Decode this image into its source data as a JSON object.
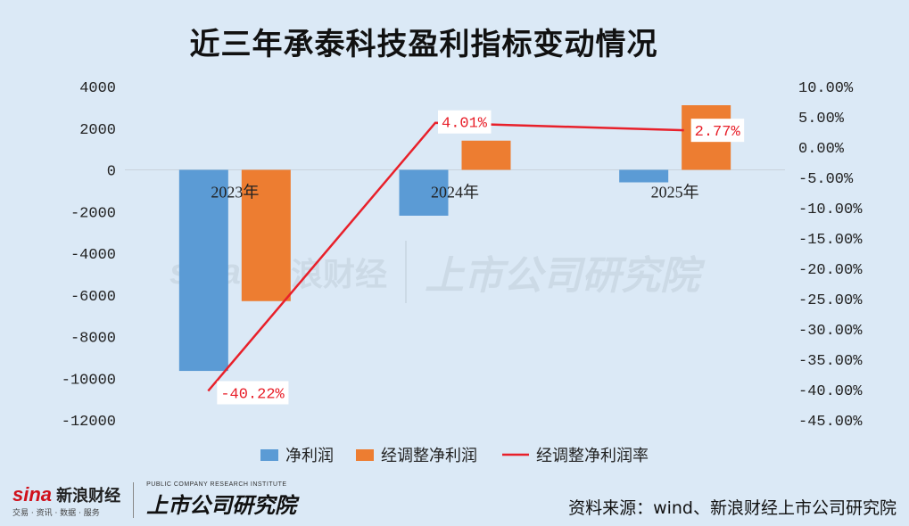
{
  "title": "近三年承泰科技盈利指标变动情况",
  "footer": {
    "source": "资料来源：wind、新浪财经上市公司研究院",
    "logo_sina": "sina",
    "logo_sina_cn": "新浪财经",
    "logo_sina_sub": "交易 · 资讯 · 数据 · 服务",
    "logo_inst": "上市公司研究院",
    "logo_inst_sub": "PUBLIC COMPANY RESEARCH INSTITUTE"
  },
  "colors": {
    "background": "#dbe9f6",
    "net_profit": "#5b9bd5",
    "adj_net_profit": "#ed7d31",
    "margin_line": "#e8202a"
  },
  "chart_data": {
    "type": "bar",
    "title": "近三年承泰科技盈利指标变动情况",
    "categories": [
      "2023年",
      "2024年",
      "2025年"
    ],
    "series": [
      {
        "name": "净利润",
        "type": "bar",
        "axis": "left",
        "values": [
          -9650,
          -2200,
          -600
        ]
      },
      {
        "name": "经调整净利润",
        "type": "bar",
        "axis": "left",
        "values": [
          -6300,
          1400,
          3100
        ]
      },
      {
        "name": "经调整净利润率",
        "type": "line",
        "axis": "right",
        "values": [
          -40.22,
          4.01,
          2.77
        ],
        "labels": [
          "-40.22%",
          "4.01%",
          "2.77%"
        ]
      }
    ],
    "y_left": {
      "min": -12000,
      "max": 4000,
      "step": 2000,
      "ticks": [
        "4000",
        "2000",
        "0",
        "-2000",
        "-4000",
        "-6000",
        "-8000",
        "-10000",
        "-12000"
      ]
    },
    "y_right": {
      "min": -45,
      "max": 10,
      "step": 5,
      "ticks": [
        "10.00%",
        "5.00%",
        "0.00%",
        "-5.00%",
        "-10.00%",
        "-15.00%",
        "-20.00%",
        "-25.00%",
        "-30.00%",
        "-35.00%",
        "-40.00%",
        "-45.00%"
      ]
    },
    "legend": [
      "净利润",
      "经调整净利润",
      "经调整净利润率"
    ],
    "legend_position": "bottom",
    "grid": false
  }
}
